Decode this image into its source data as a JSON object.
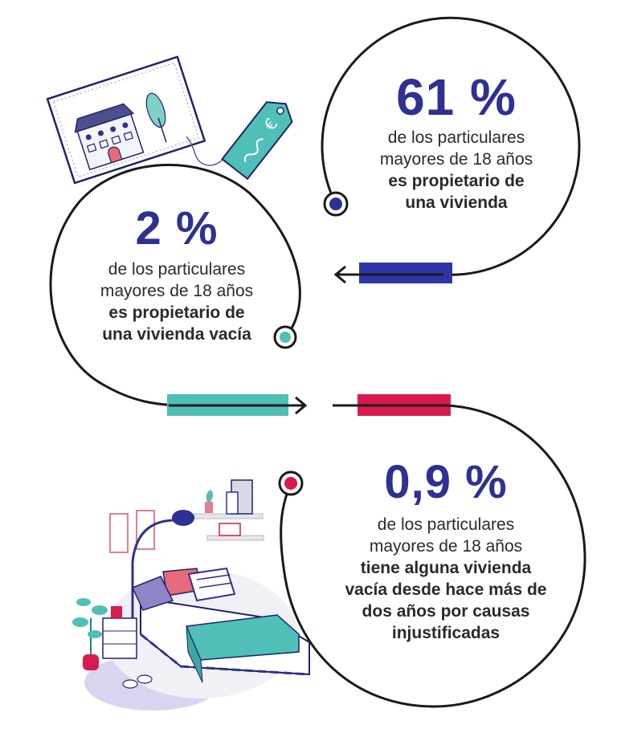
{
  "stats": [
    {
      "value": "61 %",
      "lines": [
        "de los particulares",
        "mayores de 18 años"
      ],
      "bold_lines": [
        "es propietario de",
        "una vivienda"
      ]
    },
    {
      "value": "2 %",
      "lines": [
        "de los particulares",
        "mayores de 18 años"
      ],
      "bold_lines": [
        "es propietario de",
        "una vivienda vacía"
      ]
    },
    {
      "value": "0,9 %",
      "lines": [
        "de los particulares",
        "mayores de 18 años"
      ],
      "bold_lines": [
        "tiene alguna vivienda",
        "vacía desde hace más de",
        "dos años por causas",
        "injustificadas"
      ]
    }
  ],
  "illustrations": {
    "top": "house-card-with-euro-price-tag-icon",
    "bottom": "bedroom-with-bed-lamp-and-plant-icon"
  },
  "colors": {
    "number": "#2e3192",
    "navy_bar": "#2e36a6",
    "teal_bar": "#4fbfb8",
    "crimson_bar": "#d81b4f",
    "line": "#1a1a1a",
    "text": "#2a2a2a"
  }
}
